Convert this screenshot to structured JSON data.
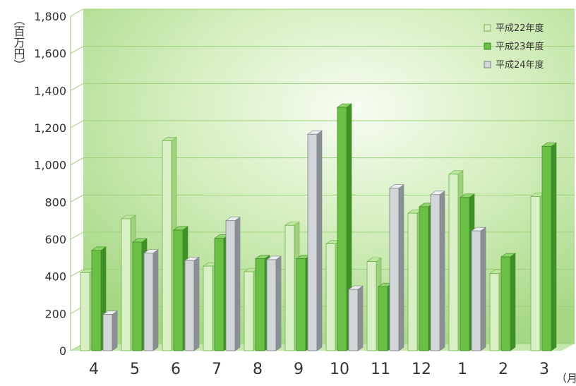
{
  "chart_data": {
    "type": "bar",
    "categories": [
      "4",
      "5",
      "6",
      "7",
      "8",
      "9",
      "10",
      "11",
      "12",
      "1",
      "2",
      "3"
    ],
    "series": [
      {
        "name": "平成22年度",
        "values": [
          420,
          710,
          1130,
          455,
          425,
          675,
          575,
          480,
          740,
          950,
          415,
          830
        ]
      },
      {
        "name": "平成23年度",
        "values": [
          540,
          585,
          650,
          605,
          495,
          495,
          1310,
          345,
          775,
          825,
          505,
          1100
        ]
      },
      {
        "name": "平成24年度",
        "values": [
          195,
          525,
          485,
          700,
          490,
          1165,
          330,
          875,
          840,
          645,
          null,
          null
        ]
      }
    ],
    "ylim": [
      0,
      1800
    ],
    "yticks": [
      "0",
      "200",
      "400",
      "600",
      "800",
      "1,000",
      "1,200",
      "1,400",
      "1,600",
      "1,800"
    ],
    "y_unit": "（百万円）",
    "x_unit": "（月",
    "grid": true,
    "legend_position": "top-right"
  },
  "colors": {
    "s1_face": "#d9f0c6",
    "s1_side": "#9fd17c",
    "s1_top": "#bde6a0",
    "s1_border": "#6fb54a",
    "s2_face": "#6abf45",
    "s2_side": "#3f8f27",
    "s2_top": "#8fd46a",
    "s2_border": "#3f8f27",
    "s3_face": "#d3d6d8",
    "s3_side": "#8a9095",
    "s3_top": "#eceeef",
    "s3_border": "#7d8388",
    "grid": "#9cd07a",
    "axis": "#8fbf6f"
  }
}
